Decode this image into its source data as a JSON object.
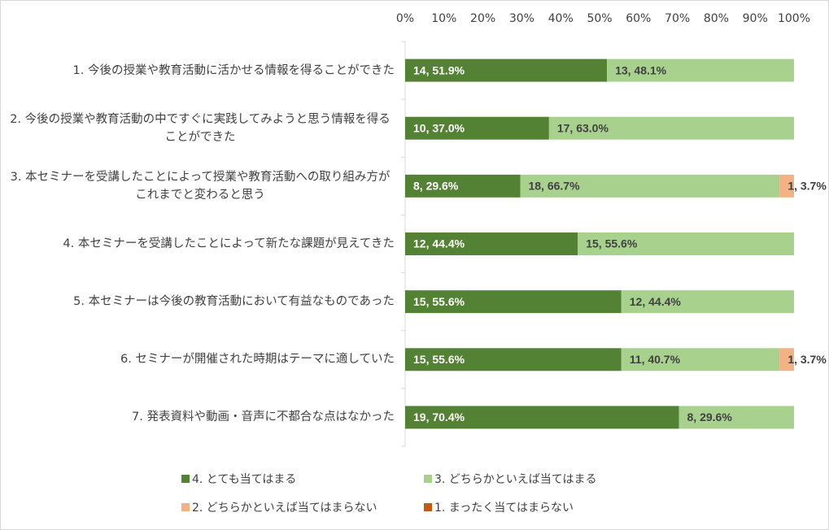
{
  "chart_data": {
    "type": "stacked_barh",
    "categories": [
      "1. 今後の授業や教育活動に活かせる情報を得ることができた",
      "2. 今後の授業や教育活動の中ですぐに実践してみようと思う情報を得ることができた",
      "3. 本セミナーを受講したことによって授業や教育活動への取り組み方がこれまでと変わると思う",
      "4. 本セミナーを受講したことによって新たな課題が見えてきた",
      "5. 本セミナーは今後の教育活動において有益なものであった",
      "6. セミナーが開催された時期はテーマに適していた",
      "7. 発表資料や動画・音声に不都合な点はなかった"
    ],
    "series": [
      {
        "name": "4. とても当てはまる",
        "color": "#548235",
        "values": [
          51.9,
          37.0,
          29.6,
          44.4,
          55.6,
          55.6,
          70.4
        ],
        "value_labels": [
          "14, 51.9%",
          "10, 37.0%",
          "8, 29.6%",
          "12, 44.4%",
          "15, 55.6%",
          "15, 55.6%",
          "19, 70.4%"
        ]
      },
      {
        "name": "3. どちらかといえば当てはまる",
        "color": "#a9d18e",
        "values": [
          48.1,
          63.0,
          66.7,
          55.6,
          44.4,
          40.7,
          29.6
        ],
        "value_labels": [
          "13, 48.1%",
          "17, 63.0%",
          "18, 66.7%",
          "15, 55.6%",
          "12, 44.4%",
          "11, 40.7%",
          "8, 29.6%"
        ]
      },
      {
        "name": "2. どちらかといえば当てはまらない",
        "color": "#f4b183",
        "values": [
          0,
          0,
          3.7,
          0,
          0,
          3.7,
          0
        ],
        "value_labels": [
          null,
          null,
          "1, 3.7%",
          null,
          null,
          "1, 3.7%",
          null
        ]
      },
      {
        "name": "1. まったく当てはまらない",
        "color": "#c55a11",
        "values": [
          0,
          0,
          0,
          0,
          0,
          0,
          0
        ]
      }
    ],
    "xlim": [
      0,
      100
    ],
    "xticks": [
      {
        "value": 0,
        "label": "0%"
      },
      {
        "value": 10,
        "label": "10%"
      },
      {
        "value": 20,
        "label": "20%"
      },
      {
        "value": 30,
        "label": "30%"
      },
      {
        "value": 40,
        "label": "40%"
      },
      {
        "value": 50,
        "label": "50%"
      },
      {
        "value": 60,
        "label": "60%"
      },
      {
        "value": 70,
        "label": "70%"
      },
      {
        "value": 80,
        "label": "80%"
      },
      {
        "value": 90,
        "label": "90%"
      },
      {
        "value": 100,
        "label": "100%"
      }
    ],
    "grid": false
  }
}
